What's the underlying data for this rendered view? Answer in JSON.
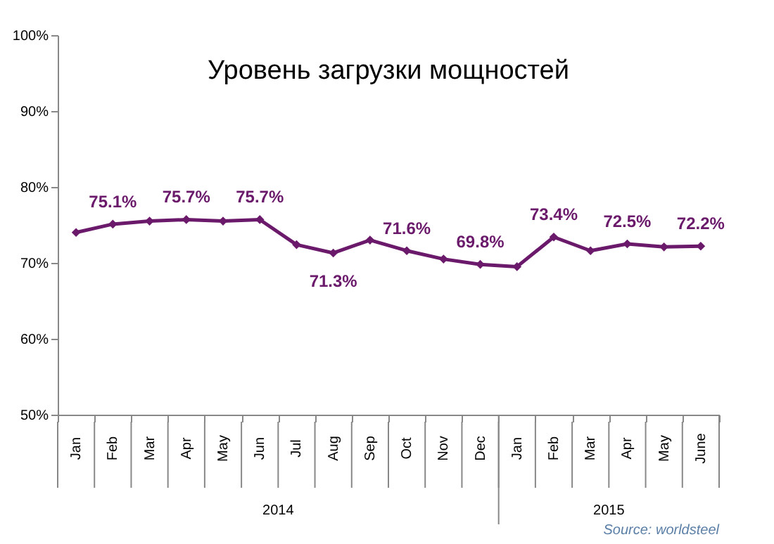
{
  "chart_data": {
    "type": "line",
    "title": "Уровень загрузки мощностей",
    "categories": [
      "Jan",
      "Feb",
      "Mar",
      "Apr",
      "May",
      "Jun",
      "Jul",
      "Aug",
      "Sep",
      "Oct",
      "Nov",
      "Dec",
      "Jan",
      "Feb",
      "Mar",
      "Apr",
      "May",
      "June"
    ],
    "series": [
      {
        "color": "#6b1a6b",
        "values": [
          74.0,
          75.1,
          75.5,
          75.7,
          75.5,
          75.7,
          72.4,
          71.3,
          73.0,
          71.6,
          70.5,
          69.8,
          69.5,
          73.4,
          71.6,
          72.5,
          72.1,
          72.2
        ],
        "value_labels": [
          null,
          "75.1%",
          null,
          "75.7%",
          null,
          "75.7%",
          null,
          "71.3%",
          null,
          "71.6%",
          null,
          "69.8%",
          null,
          "73.4%",
          null,
          "72.5%",
          null,
          "72.2%"
        ]
      }
    ],
    "ylim": [
      50,
      100
    ],
    "yticks": [
      {
        "value": 50,
        "label": "50%"
      },
      {
        "value": 60,
        "label": "60%"
      },
      {
        "value": 70,
        "label": "70%"
      },
      {
        "value": 80,
        "label": "80%"
      },
      {
        "value": 90,
        "label": "90%"
      },
      {
        "value": 100,
        "label": "100%"
      }
    ],
    "grid": false,
    "marker": "diamond",
    "line_style": "solid",
    "annotations": [
      "2014",
      "2015",
      "Source: worldsteel"
    ]
  }
}
